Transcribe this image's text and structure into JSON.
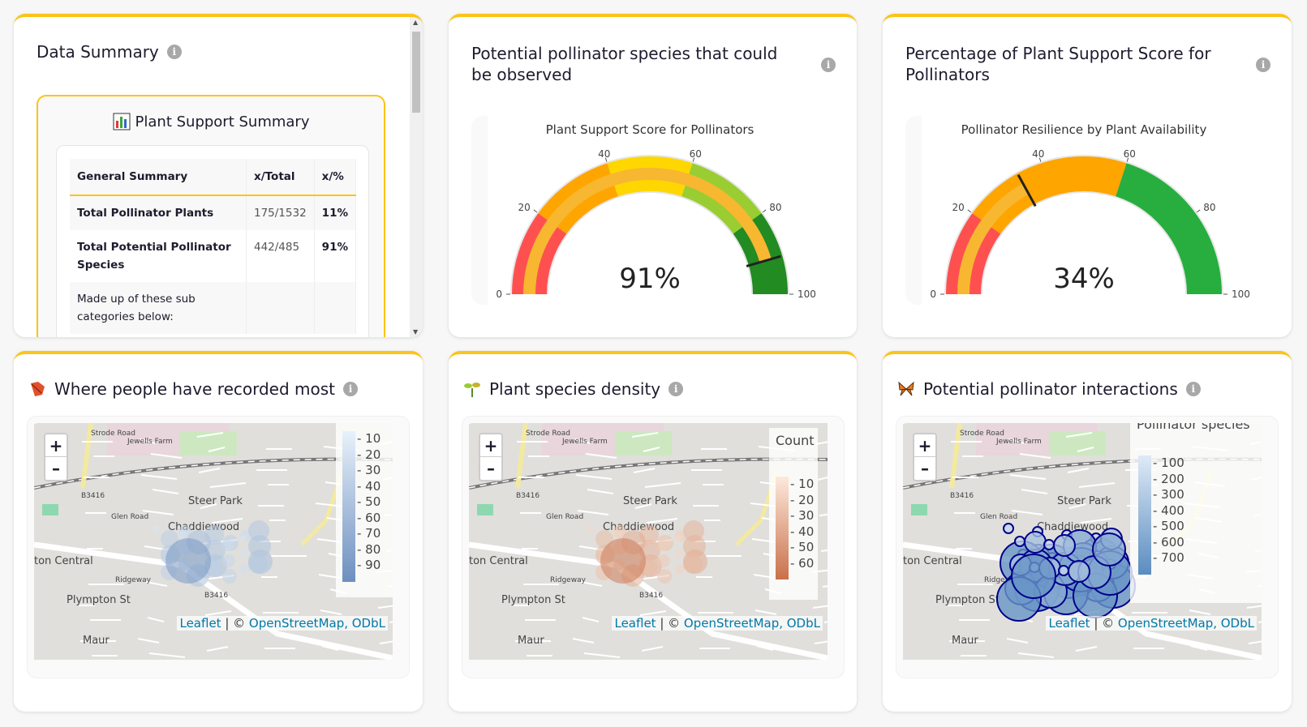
{
  "summary": {
    "title": "Data Summary",
    "box_title": "Plant Support Summary",
    "headers": [
      "General Summary",
      "x/Total",
      "x/%"
    ],
    "rows": [
      {
        "label": "Total Pollinator Plants",
        "total": "175/1532",
        "pct": "11%"
      },
      {
        "label": "Total Potential Pollinator Species",
        "total": "442/485",
        "pct": "91%"
      },
      {
        "label": "Made up of these sub categories below:",
        "total": "",
        "pct": ""
      }
    ]
  },
  "gauge1": {
    "card_title": "Potential pollinator species that could be observed",
    "title": "Plant Support Score for Pollinators",
    "value": 91,
    "display": "91%",
    "bands": [
      {
        "from": 0,
        "to": 20,
        "color": "#ff5050"
      },
      {
        "from": 20,
        "to": 40,
        "color": "#ffa500"
      },
      {
        "from": 40,
        "to": 60,
        "color": "#ffd700"
      },
      {
        "from": 60,
        "to": 80,
        "color": "#9acd32"
      },
      {
        "from": 80,
        "to": 100,
        "color": "#228b22"
      }
    ],
    "bar_color": "#f7b731",
    "ticks": [
      "0",
      "20",
      "40",
      "60",
      "80",
      "100"
    ]
  },
  "gauge2": {
    "card_title": "Percentage of Plant Support Score for Pollinators",
    "title": "Pollinator Resilience by Plant Availability",
    "value": 34,
    "display": "34%",
    "bands": [
      {
        "from": 0,
        "to": 20,
        "color": "#ff5050"
      },
      {
        "from": 20,
        "to": 60,
        "color": "#ffa500"
      },
      {
        "from": 60,
        "to": 100,
        "color": "#27ae3f"
      }
    ],
    "bar_color": "#f7b731",
    "ticks": [
      "0",
      "20",
      "40",
      "60",
      "80",
      "100"
    ]
  },
  "maps": [
    {
      "title": "Where people have recorded most",
      "legend_title": "",
      "legend": [
        "10",
        "20",
        "30",
        "40",
        "50",
        "60",
        "70",
        "80",
        "90"
      ],
      "colors": [
        "#e8f1fa",
        "#6d8fbf"
      ]
    },
    {
      "title": "Plant species density",
      "legend_title": "Count",
      "legend": [
        "10",
        "20",
        "30",
        "40",
        "50",
        "60"
      ],
      "colors": [
        "#fde9dc",
        "#c9704a"
      ]
    },
    {
      "title": "Potential pollinator interactions",
      "legend_title": "Pollinator species",
      "legend": [
        "100",
        "200",
        "300",
        "400",
        "500",
        "600",
        "700"
      ],
      "colors": [
        "#dfeaf6",
        "#5b8cc0"
      ]
    }
  ],
  "map_labels": {
    "zoom_in": "+",
    "zoom_out": "–",
    "leaflet": "Leaflet",
    "sep": " | © ",
    "osm": "OpenStreetMap, ODbL",
    "places": [
      "Chaddiewood",
      "Steer Park",
      "ton Central",
      "Plympton St",
      "Maur",
      "Ridgeway",
      "B3416",
      "B3416",
      "Glen Road",
      "Jewells Farm",
      "Strode Road"
    ]
  }
}
